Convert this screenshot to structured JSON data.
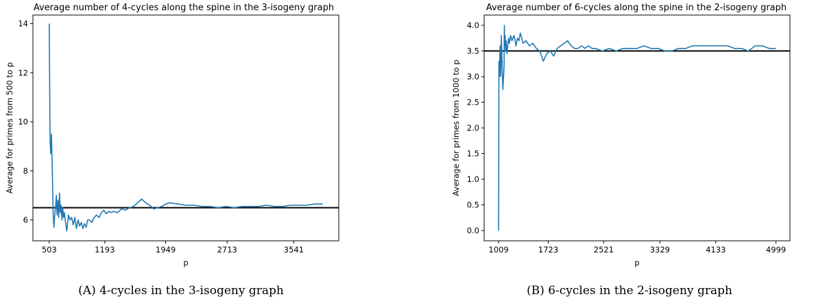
{
  "chart_data": [
    {
      "type": "line",
      "title": "Average number of 4-cycles along the spine in the 3-isogeny graph",
      "xlabel": "p",
      "ylabel": "Average for primes from 500 to p",
      "caption": "(A) 4-cycles in the 3-isogeny graph",
      "xlim": [
        300,
        4100
      ],
      "ylim": [
        5.15,
        14.35
      ],
      "xticks": [
        503,
        1193,
        1949,
        2713,
        3541
      ],
      "yticks": [
        6,
        8,
        10,
        12,
        14
      ],
      "reference_y": 6.5,
      "series": [
        {
          "x": [
            503,
            513,
            521,
            531,
            541,
            551,
            561,
            571,
            581,
            591,
            601,
            611,
            621,
            631,
            641,
            651,
            661,
            671,
            681,
            691,
            701,
            721,
            741,
            761,
            781,
            801,
            821,
            841,
            861,
            881,
            901,
            921,
            941,
            961,
            981,
            1001,
            1031,
            1061,
            1091,
            1121,
            1151,
            1181,
            1211,
            1241,
            1271,
            1301,
            1351,
            1401,
            1451,
            1501,
            1551,
            1601,
            1651,
            1701,
            1751,
            1801,
            1851,
            1901,
            1951,
            2001,
            2101,
            2201,
            2301,
            2401,
            2501,
            2601,
            2701,
            2801,
            2901,
            3001,
            3101,
            3201,
            3301,
            3401,
            3501,
            3601,
            3701,
            3801,
            3901
          ],
          "y": [
            14.0,
            9.3,
            8.7,
            9.5,
            8.0,
            6.3,
            5.7,
            6.2,
            6.5,
            7.0,
            6.2,
            6.8,
            6.1,
            7.1,
            6.3,
            6.6,
            6.0,
            6.5,
            6.1,
            6.3,
            6.0,
            5.55,
            6.2,
            6.0,
            6.1,
            5.8,
            6.1,
            5.65,
            6.0,
            5.75,
            5.9,
            5.65,
            5.85,
            5.7,
            6.0,
            6.0,
            5.9,
            6.1,
            6.2,
            6.1,
            6.3,
            6.4,
            6.25,
            6.35,
            6.3,
            6.35,
            6.3,
            6.45,
            6.4,
            6.5,
            6.55,
            6.7,
            6.85,
            6.7,
            6.6,
            6.45,
            6.5,
            6.55,
            6.65,
            6.7,
            6.65,
            6.6,
            6.6,
            6.55,
            6.55,
            6.5,
            6.55,
            6.5,
            6.55,
            6.55,
            6.55,
            6.6,
            6.55,
            6.55,
            6.6,
            6.6,
            6.6,
            6.65,
            6.65
          ]
        }
      ]
    },
    {
      "type": "line",
      "title": "Average number of 6-cycles along the spine in the 2-isogeny graph",
      "xlabel": "p",
      "ylabel": "Average for primes from 1000 to p",
      "caption": "(B) 6-cycles in the 2-isogeny graph",
      "xlim": [
        800,
        5200
      ],
      "ylim": [
        -0.2,
        4.2
      ],
      "xticks": [
        1009,
        1723,
        2521,
        3329,
        4133,
        4999
      ],
      "yticks": [
        0.0,
        0.5,
        1.0,
        1.5,
        2.0,
        2.5,
        3.0,
        3.5,
        4.0
      ],
      "reference_y": 3.5,
      "series": [
        {
          "x": [
            1009,
            1013,
            1019,
            1031,
            1039,
            1049,
            1061,
            1069,
            1087,
            1091,
            1097,
            1103,
            1109,
            1117,
            1129,
            1151,
            1163,
            1181,
            1201,
            1213,
            1231,
            1259,
            1279,
            1301,
            1321,
            1361,
            1401,
            1451,
            1501,
            1551,
            1601,
            1651,
            1701,
            1751,
            1801,
            1851,
            1901,
            1951,
            2001,
            2051,
            2101,
            2151,
            2201,
            2251,
            2301,
            2351,
            2401,
            2501,
            2601,
            2701,
            2801,
            2901,
            3001,
            3101,
            3201,
            3301,
            3401,
            3501,
            3601,
            3701,
            3801,
            3901,
            4001,
            4101,
            4201,
            4301,
            4401,
            4501,
            4601,
            4701,
            4801,
            4901,
            4999
          ],
          "y": [
            0.0,
            3.3,
            3.0,
            3.6,
            3.0,
            3.8,
            3.1,
            2.75,
            3.2,
            4.0,
            3.6,
            3.8,
            3.5,
            3.7,
            3.45,
            3.75,
            3.65,
            3.8,
            3.7,
            3.75,
            3.8,
            3.6,
            3.75,
            3.7,
            3.85,
            3.65,
            3.7,
            3.6,
            3.65,
            3.55,
            3.5,
            3.3,
            3.45,
            3.5,
            3.4,
            3.55,
            3.6,
            3.65,
            3.7,
            3.6,
            3.55,
            3.55,
            3.6,
            3.55,
            3.6,
            3.55,
            3.55,
            3.5,
            3.55,
            3.5,
            3.55,
            3.55,
            3.55,
            3.6,
            3.55,
            3.55,
            3.5,
            3.5,
            3.55,
            3.55,
            3.6,
            3.6,
            3.6,
            3.6,
            3.6,
            3.6,
            3.55,
            3.55,
            3.5,
            3.6,
            3.6,
            3.55,
            3.55
          ]
        }
      ]
    }
  ]
}
